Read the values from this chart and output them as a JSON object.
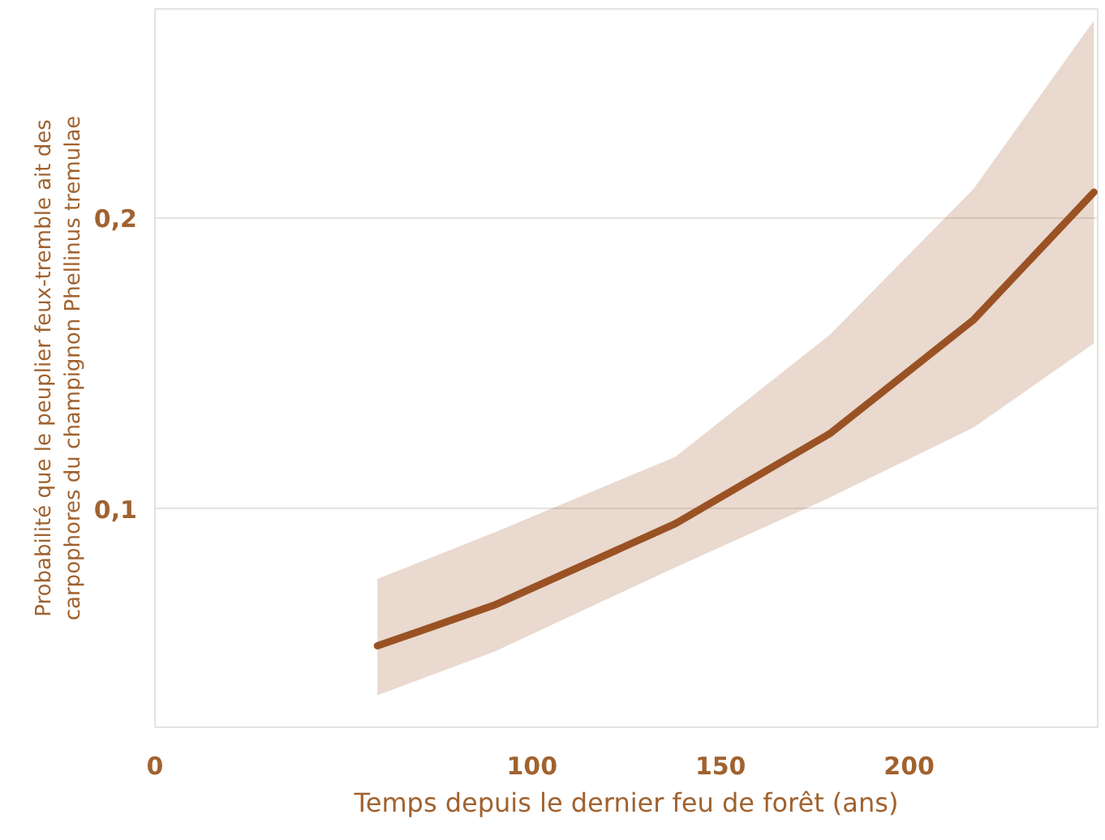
{
  "chart_data": {
    "type": "line",
    "xlabel": "Temps depuis le dernier feu de forêt (ans)",
    "ylabel": "Probabilité que le peuplier feux-tremble ait des carpophores du champignon Phellinus tremulae",
    "x": [
      59,
      90,
      138,
      179,
      217,
      249
    ],
    "series": [
      {
        "color": "#9a5224",
        "values": [
          0.053,
          0.067,
          0.095,
          0.126,
          0.165,
          0.209
        ],
        "lower": [
          0.036,
          0.051,
          0.08,
          0.104,
          0.128,
          0.157
        ],
        "upper": [
          0.076,
          0.092,
          0.118,
          0.16,
          0.21,
          0.268
        ]
      }
    ],
    "xlim": [
      0,
      250
    ],
    "ylim": [
      0.025,
      0.272
    ],
    "xticks": [
      0,
      100,
      150,
      200
    ],
    "yticks": [
      {
        "value": 0.1,
        "label": "0,1"
      },
      {
        "value": 0.2,
        "label": "0,2"
      }
    ],
    "grid": "y",
    "line_style": "solid",
    "marker": "none"
  }
}
